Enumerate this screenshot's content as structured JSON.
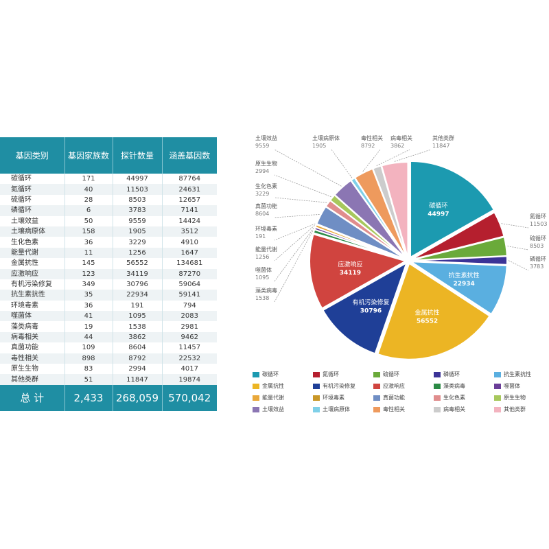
{
  "table": {
    "headers": [
      "基因类别",
      "基因家族数",
      "探针数量",
      "涵盖基因数"
    ],
    "rows": [
      [
        "碳循环",
        "171",
        "44997",
        "87764"
      ],
      [
        "氮循环",
        "40",
        "11503",
        "24631"
      ],
      [
        "硫循环",
        "28",
        "8503",
        "12657"
      ],
      [
        "磷循环",
        "6",
        "3783",
        "7141"
      ],
      [
        "土壤效益",
        "50",
        "9559",
        "14424"
      ],
      [
        "土壤病原体",
        "158",
        "1905",
        "3512"
      ],
      [
        "生化色素",
        "36",
        "3229",
        "4910"
      ],
      [
        "能量代谢",
        "11",
        "1256",
        "1647"
      ],
      [
        "金属抗性",
        "145",
        "56552",
        "134681"
      ],
      [
        "应激响应",
        "123",
        "34119",
        "87270"
      ],
      [
        "有机污染修复",
        "349",
        "30796",
        "59064"
      ],
      [
        "抗生素抗性",
        "35",
        "22934",
        "59141"
      ],
      [
        "环境毒素",
        "36",
        "191",
        "794"
      ],
      [
        "噬菌体",
        "41",
        "1095",
        "2083"
      ],
      [
        "藻类病毒",
        "19",
        "1538",
        "2981"
      ],
      [
        "病毒相关",
        "44",
        "3862",
        "9462"
      ],
      [
        "真菌功能",
        "109",
        "8604",
        "11457"
      ],
      [
        "毒性相关",
        "898",
        "8792",
        "22532"
      ],
      [
        "原生生物",
        "83",
        "2994",
        "4017"
      ],
      [
        "其他类群",
        "51",
        "11847",
        "19874"
      ]
    ],
    "total": [
      "总 计",
      "2,433",
      "268,059",
      "570,042"
    ]
  },
  "chart_data": {
    "type": "pie",
    "slices": [
      {
        "label": "碳循环",
        "value": 44997,
        "color": "#1c9ab0"
      },
      {
        "label": "氮循环",
        "value": 11503,
        "color": "#b51f2e"
      },
      {
        "label": "硫循环",
        "value": 8503,
        "color": "#6aaa3a"
      },
      {
        "label": "磷循环",
        "value": 3783,
        "color": "#3b3397"
      },
      {
        "label": "抗生素抗性",
        "value": 22934,
        "color": "#5aafe0"
      },
      {
        "label": "金属抗性",
        "value": 56552,
        "color": "#ecb524"
      },
      {
        "label": "有机污染修复",
        "value": 30796,
        "color": "#1f3f97"
      },
      {
        "label": "应激响应",
        "value": 34119,
        "color": "#d0443f"
      },
      {
        "label": "藻类病毒",
        "value": 1538,
        "color": "#2a8a45"
      },
      {
        "label": "噬菌体",
        "value": 1095,
        "color": "#6a3e98"
      },
      {
        "label": "能量代谢",
        "value": 1256,
        "color": "#e9a83a"
      },
      {
        "label": "环境毒素",
        "value": 191,
        "color": "#c99727"
      },
      {
        "label": "真菌功能",
        "value": 8604,
        "color": "#6f8ec4"
      },
      {
        "label": "生化色素",
        "value": 3229,
        "color": "#e08d8d"
      },
      {
        "label": "原生生物",
        "value": 2994,
        "color": "#a7c85c"
      },
      {
        "label": "土壤效益",
        "value": 9559,
        "color": "#8b76b3"
      },
      {
        "label": "土壤病原体",
        "value": 1905,
        "color": "#7fd0e8"
      },
      {
        "label": "毒性相关",
        "value": 8792,
        "color": "#ee9a5d"
      },
      {
        "label": "病毒相关",
        "value": 3862,
        "color": "#cccccc"
      },
      {
        "label": "其他类群",
        "value": 11847,
        "color": "#f3b3bf"
      }
    ],
    "legend_placement": "bottom"
  }
}
